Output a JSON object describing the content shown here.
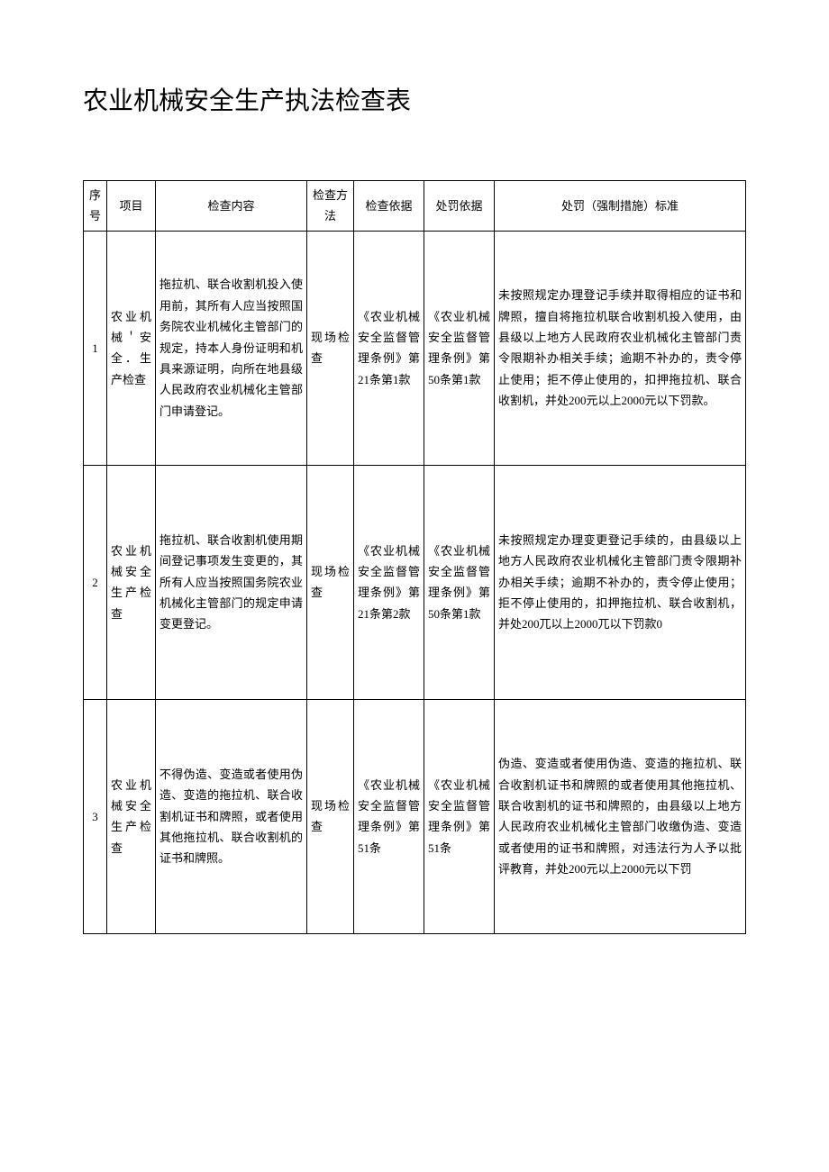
{
  "title": "农业机械安全生产执法检查表",
  "columns": [
    "序号",
    "项目",
    "检查内容",
    "检查方法",
    "检查依据",
    "处罚依据",
    "处罚（强制措施）标准"
  ],
  "rows": [
    {
      "seq": "1",
      "project": "农业机械＇安全．生产检查",
      "content": "拖拉机、联合收割机投入使用前，其所有人应当按照国务院农业机械化主管部门的规定，持本人身份证明和机具来源证明，向所在地县级人民政府农业机械化主管部门申请登记。",
      "method": "现场检查",
      "basis": "《农业机械安全监督管理条例》第21条第1款",
      "penalty_basis": "《农业机械安全监督管理条例》第50条第1款",
      "standard": "未按照规定办理登记手续并取得相应的证书和牌照，擅自将拖拉机联合收割机投入使用，由县级以上地方人民政府农业机械化主管部门责令限期补办相关手续；逾期不补办的，责令停止使用；拒不停止使用的，扣押拖拉机、联合收割机，并处200元以上2000元以下罚款。"
    },
    {
      "seq": "2",
      "project": "农业机械安全生产检查",
      "content": "拖拉机、联合收割机使用期间登记事项发生变更的，其所有人应当按照国务院农业机械化主管部门的规定申请变更登记。",
      "method": "现场检查",
      "basis": "《农业机械安全监督管理条例》第21条第2款",
      "penalty_basis": "《农业机械安全监督管理条例》第50条第1款",
      "standard": "未按照规定办理变更登记手续的，由县级以上地方人民政府农业机械化主管部门责令限期补办相关手续；逾期不补办的，责令停止使用；拒不停止使用的，扣押拖拉机、联合收割机，并处200兀以上2000兀以下罚款0"
    },
    {
      "seq": "3",
      "project": "农业机械安全生产检查",
      "content": "不得伪造、变造或者使用伪造、变造的拖拉机、联合收割机证书和牌照，或者使用其他拖拉机、联合收割机的证书和牌照。",
      "method": "现场检查",
      "basis": "《农业机械安全监督管理条例》第51条",
      "penalty_basis": "《农业机械安全监督管理条例》第51条",
      "standard": "伪造、变造或者使用伪造、变造的拖拉机、联合收割机证书和牌照的或者使用其他拖拉机、联合收割机的证书和牌照的，由县级以上地方人民政府农业机械化主管部门收缴伪造、变造或者使用的证书和牌照，对违法行为人予以批评教育，并处200元以上2000元以下罚"
    }
  ]
}
